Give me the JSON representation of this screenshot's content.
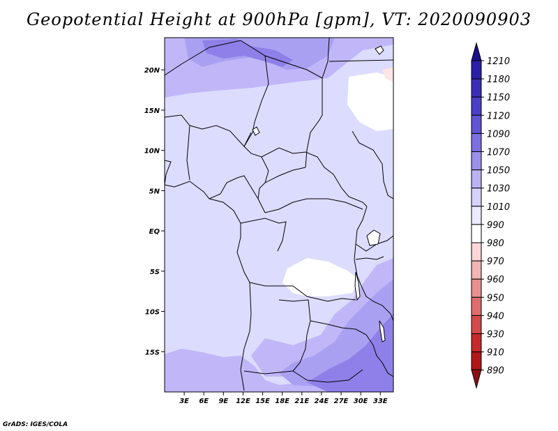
{
  "title": "Geopotential Height at 900hPa [gpm], VT: 2020090903",
  "credit": "GrADS: IGES/COLA",
  "map": {
    "lat_labels": [
      "20N",
      "15N",
      "10N",
      "5N",
      "EQ",
      "5S",
      "10S",
      "15S"
    ],
    "lon_labels": [
      "3E",
      "6E",
      "9E",
      "12E",
      "15E",
      "18E",
      "21E",
      "24E",
      "27E",
      "30E",
      "33E"
    ],
    "lat_range": [
      -20,
      24
    ],
    "lon_range": [
      0,
      35
    ],
    "fill_colors": {
      "1010_1030": "#dcdcff",
      "1030_1050": "#c0b6f8",
      "1050_1070": "#aaa0f2",
      "1070_1090": "#8e80e8",
      "990_1010": "#ffffff",
      "980_990": "#fde6e6"
    }
  },
  "colorbar": {
    "levels": [
      "1210",
      "1180",
      "1150",
      "1120",
      "1090",
      "1070",
      "1050",
      "1030",
      "1010",
      "990",
      "980",
      "970",
      "960",
      "950",
      "940",
      "930",
      "910",
      "890"
    ],
    "colors": [
      "#1a0f8c",
      "#2a1fa8",
      "#3a2eb8",
      "#4a3fc8",
      "#5f55d4",
      "#7a70e0",
      "#9a91ea",
      "#b9b2f3",
      "#d5d2fb",
      "#eceaff",
      "#ffffff",
      "#fbd6d6",
      "#f2b4b4",
      "#e89090",
      "#de6e6e",
      "#d44a4a",
      "#c62a2a",
      "#b01818",
      "#8c1010"
    ]
  }
}
